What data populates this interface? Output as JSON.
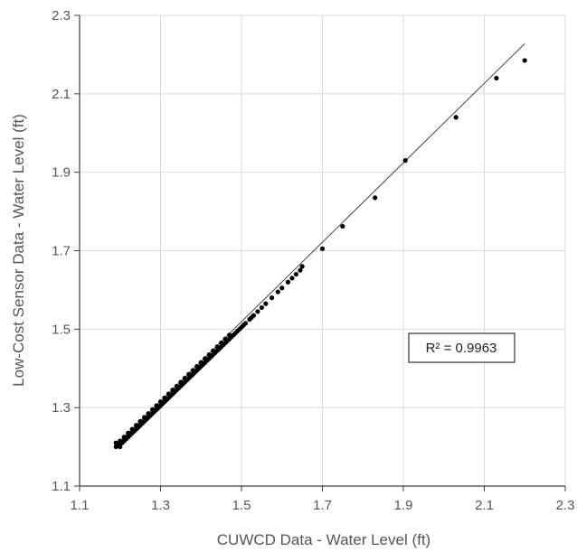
{
  "chart_data": {
    "type": "scatter",
    "title": "",
    "xlabel": "CUWCD Data - Water Level (ft)",
    "ylabel": "Low-Cost Sensor Data - Water Level (ft)",
    "xlim": [
      1.1,
      2.3
    ],
    "ylim": [
      1.1,
      2.3
    ],
    "xticks": [
      "1.1",
      "1.3",
      "1.5",
      "1.7",
      "1.9",
      "2.1",
      "2.3"
    ],
    "yticks": [
      "1.1",
      "1.3",
      "1.5",
      "1.7",
      "1.9",
      "2.1",
      "2.3"
    ],
    "grid": true,
    "legend": "none",
    "annotation": "R² = 0.9963",
    "trendline": {
      "x": [
        1.19,
        2.2
      ],
      "y": [
        1.205,
        2.228
      ]
    },
    "series": [
      {
        "marker_color": "#000000",
        "x": [
          1.19,
          1.19,
          1.195,
          1.2,
          1.2,
          1.205,
          1.21,
          1.21,
          1.215,
          1.22,
          1.22,
          1.225,
          1.23,
          1.23,
          1.235,
          1.24,
          1.24,
          1.245,
          1.25,
          1.25,
          1.255,
          1.26,
          1.26,
          1.265,
          1.27,
          1.27,
          1.275,
          1.28,
          1.28,
          1.285,
          1.29,
          1.29,
          1.295,
          1.3,
          1.3,
          1.305,
          1.31,
          1.31,
          1.315,
          1.32,
          1.32,
          1.325,
          1.33,
          1.33,
          1.335,
          1.34,
          1.34,
          1.345,
          1.35,
          1.35,
          1.355,
          1.36,
          1.36,
          1.365,
          1.37,
          1.37,
          1.375,
          1.38,
          1.38,
          1.385,
          1.39,
          1.39,
          1.395,
          1.4,
          1.4,
          1.405,
          1.41,
          1.41,
          1.415,
          1.42,
          1.42,
          1.425,
          1.43,
          1.43,
          1.435,
          1.44,
          1.44,
          1.445,
          1.45,
          1.45,
          1.455,
          1.46,
          1.46,
          1.465,
          1.47,
          1.47,
          1.475,
          1.48,
          1.485,
          1.49,
          1.495,
          1.5,
          1.505,
          1.51,
          1.52,
          1.525,
          1.53,
          1.54,
          1.55,
          1.56,
          1.575,
          1.59,
          1.6,
          1.615,
          1.625,
          1.635,
          1.645,
          1.65,
          1.7,
          1.75,
          1.83,
          1.905,
          2.03,
          2.13,
          2.2
        ],
        "y": [
          1.2,
          1.21,
          1.205,
          1.2,
          1.215,
          1.21,
          1.215,
          1.225,
          1.22,
          1.225,
          1.235,
          1.23,
          1.235,
          1.245,
          1.24,
          1.245,
          1.255,
          1.25,
          1.255,
          1.265,
          1.26,
          1.265,
          1.275,
          1.27,
          1.275,
          1.285,
          1.28,
          1.285,
          1.295,
          1.29,
          1.295,
          1.305,
          1.3,
          1.305,
          1.315,
          1.31,
          1.315,
          1.325,
          1.32,
          1.325,
          1.335,
          1.33,
          1.335,
          1.345,
          1.34,
          1.345,
          1.355,
          1.35,
          1.355,
          1.365,
          1.36,
          1.365,
          1.375,
          1.37,
          1.375,
          1.385,
          1.38,
          1.385,
          1.395,
          1.39,
          1.395,
          1.405,
          1.4,
          1.405,
          1.415,
          1.41,
          1.415,
          1.425,
          1.42,
          1.425,
          1.435,
          1.43,
          1.435,
          1.445,
          1.44,
          1.445,
          1.455,
          1.45,
          1.455,
          1.465,
          1.46,
          1.465,
          1.475,
          1.47,
          1.475,
          1.485,
          1.48,
          1.485,
          1.49,
          1.495,
          1.5,
          1.505,
          1.51,
          1.515,
          1.525,
          1.53,
          1.535,
          1.545,
          1.555,
          1.565,
          1.58,
          1.595,
          1.605,
          1.62,
          1.63,
          1.64,
          1.65,
          1.66,
          1.705,
          1.762,
          1.835,
          1.93,
          2.04,
          2.14,
          2.185
        ]
      }
    ]
  }
}
